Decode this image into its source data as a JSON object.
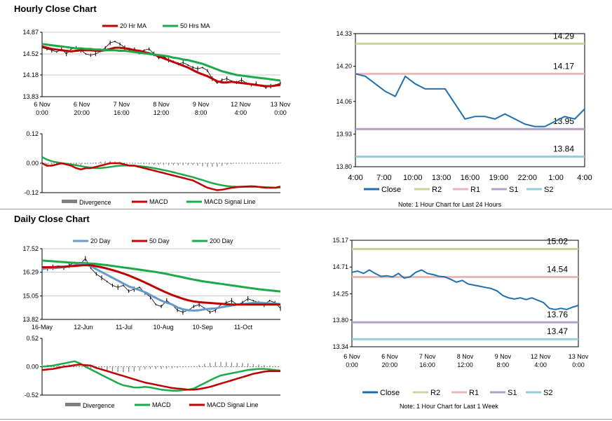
{
  "sections": {
    "hourly_title": "Hourly Close Chart",
    "daily_title": "Daily Close Chart",
    "hourly_note": "Note: 1 Hour Chart for Last 24 Hours",
    "daily_note": "Note: 1 Hour Chart for Last 1 Week"
  },
  "colors": {
    "ma_short": "#c00000",
    "ma_long": "#1aaa4a",
    "ma_20day": "#6699cc",
    "divergence": "#808080",
    "signal": "#1aaa4a",
    "close": "#1f6fb0",
    "r2": "#c4d79b",
    "r1": "#e6b8b7",
    "s1": "#b1a0c7",
    "s2": "#92cddc"
  },
  "chart_data": [
    {
      "id": "hourly_price",
      "type": "line",
      "legend": [
        "20 Hr MA",
        "50 Hrs MA"
      ],
      "yticks": [
        "14.87",
        "14.52",
        "14.18",
        "13.83"
      ],
      "ylim": [
        13.83,
        14.87
      ],
      "xticks": [
        [
          "6 Nov",
          "0:00"
        ],
        [
          "6 Nov",
          "20:00"
        ],
        [
          "7 Nov",
          "16:00"
        ],
        [
          "8 Nov",
          "12:00"
        ],
        [
          "9 Nov",
          "8:00"
        ],
        [
          "12 Nov",
          "4:00"
        ],
        [
          "13 Nov",
          "0:00"
        ]
      ],
      "series": [
        {
          "name": "Price",
          "values": [
            14.62,
            14.6,
            14.58,
            14.55,
            14.6,
            14.52,
            14.6,
            14.62,
            14.58,
            14.52,
            14.5,
            14.52,
            14.56,
            14.62,
            14.7,
            14.72,
            14.68,
            14.62,
            14.58,
            14.6,
            14.55,
            14.58,
            14.6,
            14.52,
            14.45,
            14.48,
            14.42,
            14.4,
            14.36,
            14.38,
            14.34,
            14.3,
            14.28,
            14.3,
            14.25,
            14.12,
            14.05,
            14.1,
            14.12,
            14.08,
            14.06,
            14.1,
            14.05,
            14.02,
            14.04,
            14.0,
            13.98,
            14.0,
            14.02,
            14.05
          ]
        },
        {
          "name": "20 Hr MA",
          "values": [
            14.64,
            14.62,
            14.6,
            14.59,
            14.58,
            14.57,
            14.56,
            14.57,
            14.58,
            14.58,
            14.58,
            14.57,
            14.57,
            14.58,
            14.6,
            14.62,
            14.62,
            14.61,
            14.6,
            14.58,
            14.57,
            14.55,
            14.53,
            14.51,
            14.48,
            14.45,
            14.42,
            14.39,
            14.36,
            14.33,
            14.3,
            14.26,
            14.22,
            14.19,
            14.16,
            14.12,
            14.08,
            14.06,
            14.06,
            14.07,
            14.06,
            14.05,
            14.04,
            14.03,
            14.02,
            14.01,
            14.0,
            14.0,
            14.01,
            14.02
          ]
        },
        {
          "name": "50 Hrs MA",
          "values": [
            14.68,
            14.67,
            14.66,
            14.65,
            14.64,
            14.63,
            14.62,
            14.61,
            14.61,
            14.6,
            14.6,
            14.59,
            14.59,
            14.58,
            14.58,
            14.58,
            14.57,
            14.57,
            14.56,
            14.55,
            14.54,
            14.53,
            14.52,
            14.51,
            14.5,
            14.49,
            14.48,
            14.46,
            14.45,
            14.43,
            14.42,
            14.4,
            14.38,
            14.36,
            14.33,
            14.3,
            14.27,
            14.24,
            14.22,
            14.2,
            14.18,
            14.17,
            14.16,
            14.15,
            14.14,
            14.13,
            14.12,
            14.11,
            14.1,
            14.09
          ]
        }
      ]
    },
    {
      "id": "hourly_macd",
      "type": "line",
      "legend": [
        "Divergence",
        "MACD",
        "MACD Signal Line"
      ],
      "yticks": [
        "0.12",
        "0.00",
        "-0.12"
      ],
      "ylim": [
        -0.12,
        0.12
      ],
      "series": [
        {
          "name": "MACD",
          "values": [
            0.0,
            -0.01,
            -0.01,
            -0.005,
            0.0,
            -0.005,
            -0.01,
            -0.02,
            -0.025,
            -0.02,
            -0.02,
            -0.015,
            -0.01,
            -0.005,
            0.0,
            0.0,
            0.0,
            -0.005,
            -0.01,
            -0.01,
            -0.015,
            -0.02,
            -0.025,
            -0.03,
            -0.035,
            -0.04,
            -0.045,
            -0.05,
            -0.055,
            -0.06,
            -0.065,
            -0.07,
            -0.08,
            -0.09,
            -0.1,
            -0.105,
            -0.11,
            -0.108,
            -0.104,
            -0.1,
            -0.098,
            -0.096,
            -0.095,
            -0.094,
            -0.095,
            -0.098,
            -0.1,
            -0.1,
            -0.1,
            -0.095
          ]
        },
        {
          "name": "MACD Signal Line",
          "values": [
            0.025,
            0.015,
            0.008,
            0.004,
            0.0,
            -0.002,
            -0.005,
            -0.008,
            -0.012,
            -0.015,
            -0.018,
            -0.02,
            -0.02,
            -0.018,
            -0.015,
            -0.012,
            -0.01,
            -0.009,
            -0.009,
            -0.01,
            -0.012,
            -0.014,
            -0.017,
            -0.02,
            -0.024,
            -0.028,
            -0.032,
            -0.037,
            -0.042,
            -0.047,
            -0.052,
            -0.057,
            -0.063,
            -0.069,
            -0.075,
            -0.081,
            -0.086,
            -0.09,
            -0.093,
            -0.095,
            -0.096,
            -0.096,
            -0.096,
            -0.096,
            -0.096,
            -0.097,
            -0.098,
            -0.099,
            -0.1,
            -0.099
          ]
        }
      ]
    },
    {
      "id": "hourly_levels",
      "type": "line",
      "yticks": [
        "14.33",
        "14.20",
        "14.06",
        "13.93",
        "13.80"
      ],
      "ylim": [
        13.8,
        14.33
      ],
      "xticks": [
        "4:00",
        "7:00",
        "10:00",
        "13:00",
        "16:00",
        "19:00",
        "22:00",
        "1:00",
        "4:00"
      ],
      "legend": [
        "Close",
        "R2",
        "R1",
        "S1",
        "S2"
      ],
      "levels": {
        "R2": "14.29",
        "R1": "14.17",
        "S1": "13.95",
        "S2": "13.84"
      },
      "series": [
        {
          "name": "Close",
          "values": [
            14.17,
            14.16,
            14.13,
            14.1,
            14.08,
            14.16,
            14.13,
            14.11,
            14.11,
            14.11,
            14.05,
            13.99,
            14.0,
            14.0,
            13.99,
            14.01,
            13.99,
            13.97,
            13.96,
            13.96,
            13.98,
            14.0,
            13.99,
            14.03
          ]
        }
      ]
    },
    {
      "id": "daily_price",
      "type": "line",
      "legend": [
        "20 Day",
        "50 Day",
        "200 Day"
      ],
      "yticks": [
        "17.52",
        "16.29",
        "15.05",
        "13.82"
      ],
      "ylim": [
        13.82,
        17.52
      ],
      "xticks": [
        "16-May",
        "12-Jun",
        "11-Jul",
        "10-Aug",
        "10-Sep",
        "11-Oct"
      ],
      "series": [
        {
          "name": "Price",
          "values": [
            16.5,
            16.45,
            16.55,
            16.6,
            16.5,
            16.65,
            16.8,
            16.7,
            17.0,
            16.5,
            16.2,
            16.0,
            15.8,
            15.6,
            15.5,
            15.6,
            15.3,
            15.4,
            15.5,
            15.2,
            15.0,
            14.6,
            14.5,
            14.8,
            14.6,
            14.3,
            14.2,
            14.3,
            14.5,
            14.6,
            14.4,
            14.2,
            14.3,
            14.6,
            14.7,
            14.8,
            14.6,
            14.7,
            14.9,
            14.8,
            14.7,
            14.6,
            14.8,
            14.7,
            14.4
          ]
        },
        {
          "name": "20 Day",
          "values": [
            16.45,
            16.5,
            16.5,
            16.52,
            16.55,
            16.6,
            16.65,
            16.7,
            16.7,
            16.6,
            16.45,
            16.3,
            16.15,
            16.0,
            15.85,
            15.7,
            15.55,
            15.45,
            15.35,
            15.25,
            15.1,
            14.95,
            14.8,
            14.7,
            14.6,
            14.45,
            14.35,
            14.3,
            14.28,
            14.3,
            14.35,
            14.38,
            14.4,
            14.45,
            14.5,
            14.55,
            14.6,
            14.62,
            14.65,
            14.68,
            14.7,
            14.68,
            14.66,
            14.65,
            14.62
          ]
        },
        {
          "name": "50 Day",
          "values": [
            16.55,
            16.55,
            16.56,
            16.57,
            16.58,
            16.6,
            16.62,
            16.64,
            16.66,
            16.65,
            16.6,
            16.55,
            16.48,
            16.4,
            16.32,
            16.22,
            16.12,
            16.0,
            15.88,
            15.75,
            15.62,
            15.48,
            15.35,
            15.22,
            15.1,
            15.0,
            14.9,
            14.82,
            14.76,
            14.72,
            14.7,
            14.68,
            14.66,
            14.64,
            14.62,
            14.6,
            14.6,
            14.6,
            14.6,
            14.6,
            14.6,
            14.6,
            14.6,
            14.6,
            14.6
          ]
        },
        {
          "name": "200 Day",
          "values": [
            16.9,
            16.88,
            16.86,
            16.84,
            16.82,
            16.8,
            16.78,
            16.77,
            16.76,
            16.74,
            16.72,
            16.69,
            16.66,
            16.62,
            16.58,
            16.54,
            16.5,
            16.46,
            16.42,
            16.38,
            16.34,
            16.3,
            16.25,
            16.2,
            16.14,
            16.08,
            16.02,
            15.96,
            15.9,
            15.85,
            15.8,
            15.76,
            15.72,
            15.68,
            15.64,
            15.6,
            15.56,
            15.52,
            15.48,
            15.44,
            15.4,
            15.37,
            15.34,
            15.31,
            15.28
          ]
        }
      ]
    },
    {
      "id": "daily_macd",
      "type": "line",
      "legend": [
        "Divergence",
        "MACD",
        "MACD Signal Line"
      ],
      "yticks": [
        "0.52",
        "0.00",
        "-0.52"
      ],
      "ylim": [
        -0.52,
        0.52
      ],
      "series": [
        {
          "name": "MACD",
          "values": [
            0.0,
            0.01,
            0.02,
            0.04,
            0.06,
            0.08,
            0.1,
            0.06,
            0.0,
            -0.05,
            -0.1,
            -0.15,
            -0.2,
            -0.25,
            -0.3,
            -0.34,
            -0.36,
            -0.38,
            -0.38,
            -0.37,
            -0.38,
            -0.4,
            -0.42,
            -0.43,
            -0.44,
            -0.44,
            -0.43,
            -0.42,
            -0.4,
            -0.35,
            -0.3,
            -0.25,
            -0.2,
            -0.16,
            -0.14,
            -0.12,
            -0.1,
            -0.08,
            -0.06,
            -0.05,
            -0.04,
            -0.04,
            -0.05,
            -0.06,
            -0.07
          ]
        },
        {
          "name": "MACD Signal Line",
          "values": [
            -0.06,
            -0.05,
            -0.04,
            -0.02,
            0.0,
            0.01,
            0.03,
            0.04,
            0.03,
            0.02,
            -0.02,
            -0.05,
            -0.08,
            -0.11,
            -0.14,
            -0.17,
            -0.2,
            -0.23,
            -0.26,
            -0.29,
            -0.31,
            -0.33,
            -0.35,
            -0.37,
            -0.39,
            -0.4,
            -0.41,
            -0.42,
            -0.42,
            -0.41,
            -0.39,
            -0.37,
            -0.34,
            -0.31,
            -0.28,
            -0.25,
            -0.22,
            -0.19,
            -0.16,
            -0.13,
            -0.11,
            -0.09,
            -0.08,
            -0.08,
            -0.08
          ]
        }
      ]
    },
    {
      "id": "daily_levels",
      "type": "line",
      "yticks": [
        "15.17",
        "14.71",
        "14.25",
        "13.80",
        "13.34"
      ],
      "ylim": [
        13.34,
        15.17
      ],
      "xticks": [
        [
          "6 Nov",
          "0:00"
        ],
        [
          "6 Nov",
          "20:00"
        ],
        [
          "7 Nov",
          "16:00"
        ],
        [
          "8 Nov",
          "12:00"
        ],
        [
          "9 Nov",
          "8:00"
        ],
        [
          "12 Nov",
          "4:00"
        ],
        [
          "13 Nov",
          "0:00"
        ]
      ],
      "legend": [
        "Close",
        "R2",
        "R1",
        "S1",
        "S2"
      ],
      "levels": {
        "R2": "15.02",
        "R1": "14.54",
        "S1": "13.76",
        "S2": "13.47"
      },
      "series": [
        {
          "name": "Close",
          "values": [
            14.62,
            14.64,
            14.6,
            14.66,
            14.6,
            14.55,
            14.56,
            14.54,
            14.6,
            14.52,
            14.54,
            14.62,
            14.66,
            14.6,
            14.58,
            14.55,
            14.54,
            14.5,
            14.45,
            14.48,
            14.42,
            14.4,
            14.38,
            14.36,
            14.34,
            14.3,
            14.22,
            14.18,
            14.16,
            14.18,
            14.15,
            14.18,
            14.14,
            14.1,
            14.0,
            13.98,
            14.0,
            13.98,
            14.02,
            14.05
          ]
        }
      ]
    }
  ]
}
